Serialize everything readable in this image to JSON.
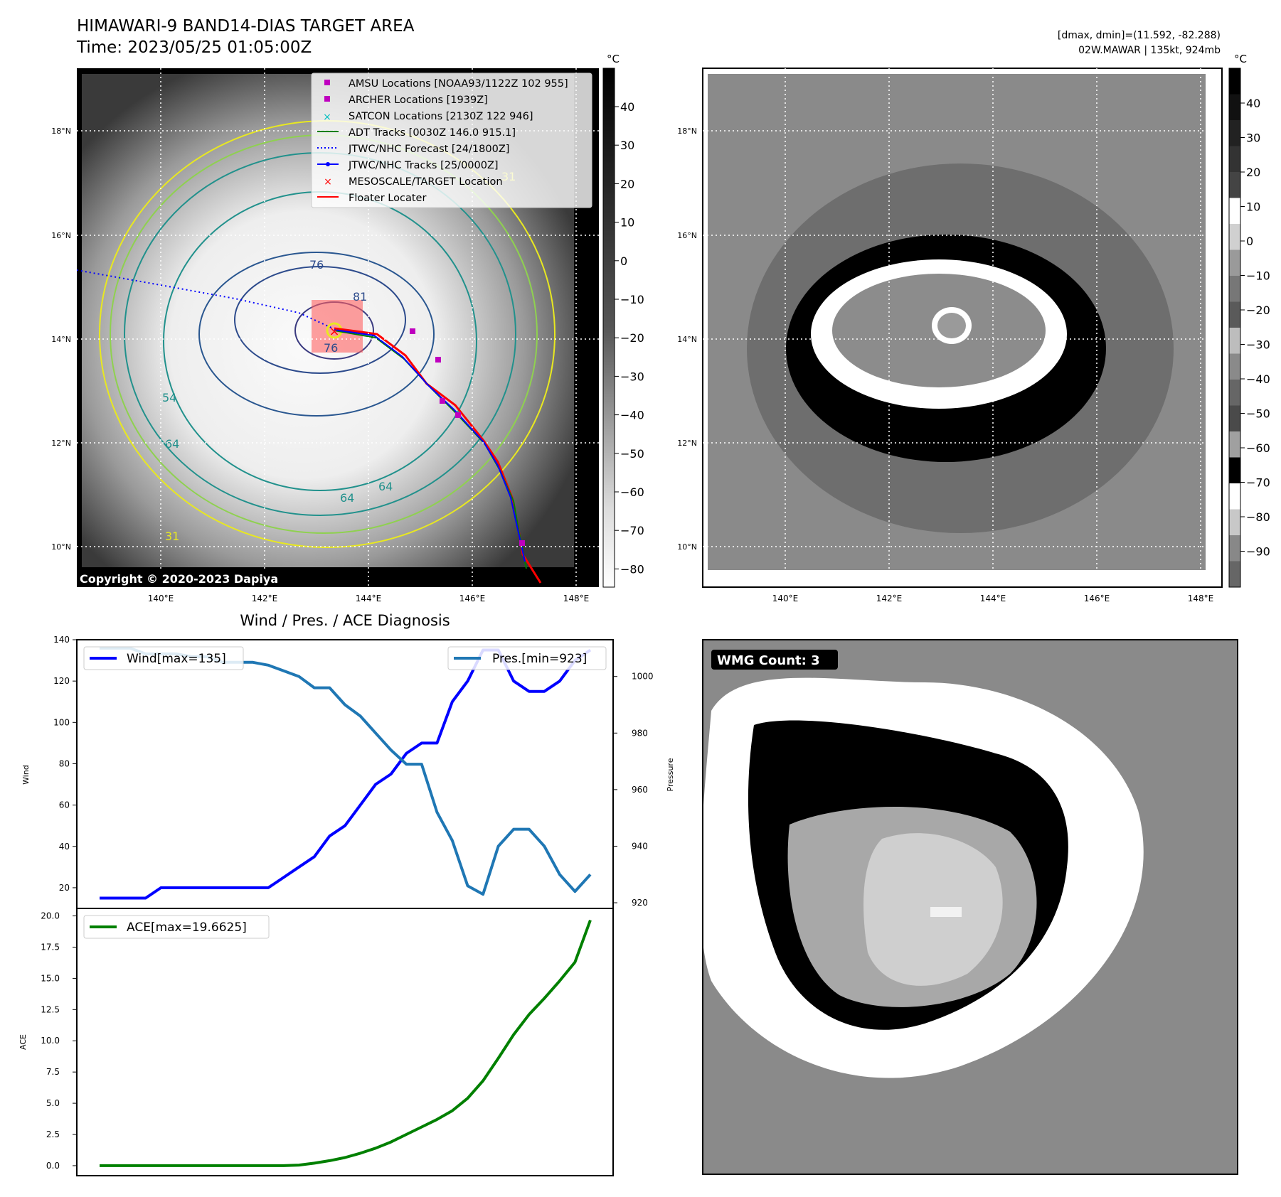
{
  "header": {
    "title_line1": "HIMAWARI-9 BAND14-DIAS TARGET AREA",
    "title_line2": "Time: 2023/05/25 01:05:00Z",
    "info_line1": "[dmax, dmin]=(11.592, -82.288)",
    "info_line2": "02W.MAWAR | 135kt, 924mb"
  },
  "map_common": {
    "lat_ticks": [
      "18°N",
      "16°N",
      "14°N",
      "12°N",
      "10°N"
    ],
    "lon_ticks": [
      "140°E",
      "142°E",
      "144°E",
      "146°E",
      "148°E"
    ],
    "unit": "°C"
  },
  "panel_ir": {
    "copyright": "Copyright © 2020-2023 Dapiya",
    "colorbar_ticks": [
      "40",
      "30",
      "20",
      "10",
      "0",
      "−10",
      "−20",
      "−30",
      "−40",
      "−50",
      "−60",
      "−70",
      "−80"
    ],
    "contour_labels": [
      "76",
      "81",
      "76",
      "64",
      "64",
      "64",
      "54",
      "31",
      "31"
    ],
    "legend": [
      {
        "label": "AMSU Locations [NOAA93/1122Z 102 955]",
        "marker": "square",
        "color": "#bf00bf"
      },
      {
        "label": "ARCHER Locations [1939Z]",
        "marker": "square",
        "color": "#bf00bf"
      },
      {
        "label": "SATCON Locations [2130Z 122 946]",
        "marker": "x",
        "color": "#00bfbf"
      },
      {
        "label": "ADT Tracks [0030Z 146.0 915.1]",
        "marker": "line",
        "color": "#008000"
      },
      {
        "label": "JTWC/NHC Forecast [24/1800Z]",
        "marker": "dotted",
        "color": "#0000ff"
      },
      {
        "label": "JTWC/NHC Tracks [25/0000Z]",
        "marker": "line-dot",
        "color": "#0000ff"
      },
      {
        "label": "MESOSCALE/TARGET Location",
        "marker": "x",
        "color": "#ff0000"
      },
      {
        "label": "Floater Locater",
        "marker": "line",
        "color": "#ff0000"
      }
    ]
  },
  "panel_dias": {
    "colorbar_ticks": [
      "40",
      "30",
      "20",
      "10",
      "0",
      "−10",
      "−20",
      "−30",
      "−40",
      "−50",
      "−60",
      "−70",
      "−80",
      "−90"
    ]
  },
  "panel_wmg": {
    "badge": "WMG Count: 3"
  },
  "chart_data": [
    {
      "type": "line",
      "title": "Wind / Pres. / ACE Diagnosis",
      "ylabel": "Wind",
      "y2label": "Pressure",
      "ylim": [
        10,
        140
      ],
      "y2lim": [
        918,
        1013
      ],
      "yticks": [
        "140",
        "120",
        "100",
        "80",
        "60",
        "40",
        "20"
      ],
      "y2ticks": [
        "1000",
        "980",
        "960",
        "940",
        "920"
      ],
      "x": [
        0,
        1,
        2,
        3,
        4,
        5,
        6,
        7,
        8,
        9,
        10,
        11,
        12,
        13,
        14,
        15,
        16,
        17,
        18,
        19,
        20,
        21,
        22,
        23,
        24,
        25,
        26,
        27,
        28,
        29,
        30,
        31,
        32
      ],
      "series": [
        {
          "name": "Wind[max=135]",
          "axis": "left",
          "color": "#0000ff",
          "values": [
            15,
            15,
            15,
            15,
            20,
            20,
            20,
            20,
            20,
            20,
            20,
            20,
            25,
            30,
            35,
            45,
            50,
            60,
            70,
            75,
            85,
            90,
            90,
            110,
            120,
            135,
            135,
            120,
            115,
            115,
            120,
            130,
            135
          ]
        },
        {
          "name": "Pres.[min=923]",
          "axis": "right",
          "color": "#1f77b4",
          "values": [
            1010,
            1010,
            1010,
            1008,
            1008,
            1008,
            1007,
            1007,
            1005,
            1005,
            1005,
            1004,
            1002,
            1000,
            996,
            996,
            990,
            986,
            980,
            974,
            969,
            969,
            952,
            942,
            926,
            923,
            940,
            946,
            946,
            940,
            930,
            924,
            930
          ]
        }
      ]
    },
    {
      "type": "line",
      "ylabel": "ACE",
      "ylim": [
        -0.8,
        20.6
      ],
      "yticks": [
        "20.0",
        "17.5",
        "15.0",
        "12.5",
        "10.0",
        "7.5",
        "5.0",
        "2.5",
        "0.0"
      ],
      "x": [
        0,
        1,
        2,
        3,
        4,
        5,
        6,
        7,
        8,
        9,
        10,
        11,
        12,
        13,
        14,
        15,
        16,
        17,
        18,
        19,
        20,
        21,
        22,
        23,
        24,
        25,
        26,
        27,
        28,
        29,
        30,
        31,
        32
      ],
      "series": [
        {
          "name": "ACE[max=19.6625]",
          "color": "#008000",
          "values": [
            0,
            0,
            0,
            0,
            0,
            0,
            0,
            0,
            0,
            0,
            0,
            0,
            0,
            0.05,
            0.2,
            0.4,
            0.65,
            1.0,
            1.4,
            1.9,
            2.5,
            3.1,
            3.7,
            4.4,
            5.4,
            6.8,
            8.6,
            10.5,
            12.1,
            13.4,
            14.8,
            16.3,
            19.66
          ]
        }
      ]
    }
  ]
}
